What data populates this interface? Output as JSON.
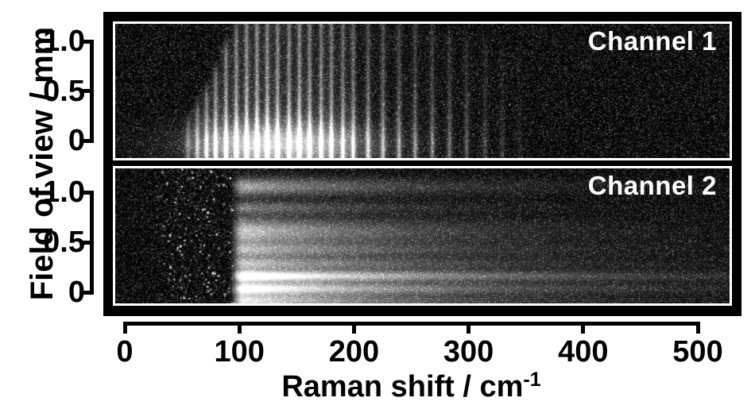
{
  "figure": {
    "background": "#ffffff",
    "frame_color": "#000000",
    "panel_background": "#000000",
    "panel_border_color": "#ffffff",
    "text_color": "#000000",
    "panel_label_color": "#ffffff"
  },
  "chart_data": {
    "type": "heatmap",
    "title": "",
    "xlabel": "Raman shift / cm⁻¹",
    "xlabel_parts": {
      "main": "Raman shift / cm",
      "sup": "-1"
    },
    "ylabel": "Field of view / mm",
    "x_ticks": [
      0,
      100,
      200,
      300,
      400,
      500
    ],
    "y_ticks": [
      "1.0",
      "0.5",
      "0"
    ],
    "grid": "off",
    "colormap": "grayscale (black = 0, white = max intensity)",
    "panels": [
      {
        "label": "Channel 1",
        "kind": "comb of narrow vertical Raman emission lines",
        "x_range_cm1": [
          -9,
          526
        ],
        "y_range_mm": [
          -0.2,
          1.2
        ],
        "lines_format": [
          "shift_cm1",
          "relative_intensity",
          "top_extent_mm"
        ],
        "lines": [
          [
            55,
            0.3,
            0.15
          ],
          [
            63,
            0.5,
            0.3
          ],
          [
            71,
            0.65,
            0.45
          ],
          [
            79,
            0.78,
            0.65
          ],
          [
            88,
            0.88,
            0.9
          ],
          [
            97,
            0.95,
            1.1
          ],
          [
            106,
            1.0,
            1.2
          ],
          [
            115,
            1.0,
            1.2
          ],
          [
            124,
            0.98,
            1.2
          ],
          [
            133,
            0.95,
            1.2
          ],
          [
            143,
            0.92,
            1.2
          ],
          [
            152,
            0.95,
            1.2
          ],
          [
            161,
            0.9,
            1.2
          ],
          [
            171,
            0.85,
            1.2
          ],
          [
            180,
            0.8,
            1.2
          ],
          [
            190,
            0.72,
            1.2
          ],
          [
            199,
            0.66,
            1.2
          ],
          [
            212,
            0.58,
            1.15
          ],
          [
            225,
            0.52,
            1.15
          ],
          [
            239,
            0.46,
            1.1
          ],
          [
            253,
            0.4,
            1.1
          ],
          [
            268,
            0.35,
            1.05
          ],
          [
            283,
            0.3,
            1.05
          ],
          [
            298,
            0.24,
            1.0
          ],
          [
            314,
            0.17,
            0.95
          ],
          [
            329,
            0.11,
            0.9
          ],
          [
            344,
            0.07,
            0.85
          ]
        ],
        "bottom_glow": {
          "center_cm1": 135,
          "center_mm": -0.02,
          "sigma_cm1": 75,
          "sigma_mm": 0.2,
          "amp": 0.5
        },
        "noise_amp": 0.055
      },
      {
        "label": "Channel 2",
        "kind": "diffuse continuum with horizontal bright bands and speckle at low shift",
        "x_range_cm1": [
          -9,
          526
        ],
        "y_range_mm": [
          -0.1,
          1.24
        ],
        "continuum": {
          "onset_cm1": 90,
          "onset_width_cm1": 13,
          "decay_cm1": 145,
          "amp": 0.42,
          "center_mm": 0.15,
          "sigma_mm": 0.62
        },
        "bands": [
          {
            "center_mm": 1.06,
            "sigma_mm": 0.085,
            "amp": 0.55,
            "decay_cm1": 130
          },
          {
            "center_mm": 0.85,
            "sigma_mm": 0.055,
            "amp": 0.32,
            "decay_cm1": 110
          },
          {
            "center_mm": 0.615,
            "sigma_mm": 0.115,
            "amp": 0.5,
            "decay_cm1": 130
          },
          {
            "center_mm": 0.43,
            "sigma_mm": 0.06,
            "amp": 0.34,
            "decay_cm1": 150
          },
          {
            "center_mm": 0.29,
            "sigma_mm": 0.055,
            "amp": 0.36,
            "decay_cm1": 160
          },
          {
            "center_mm": 0.165,
            "sigma_mm": 0.05,
            "amp": 0.85,
            "decay_cm1": 200
          },
          {
            "center_mm": 0.04,
            "sigma_mm": 0.055,
            "amp": 0.75,
            "decay_cm1": 170
          },
          {
            "center_mm": -0.085,
            "sigma_mm": 0.065,
            "amp": 0.55,
            "decay_cm1": 140
          }
        ],
        "speckle": {
          "x_range_cm1": [
            22,
            95
          ],
          "count": 430
        },
        "noise_amp": 0.055
      }
    ]
  }
}
